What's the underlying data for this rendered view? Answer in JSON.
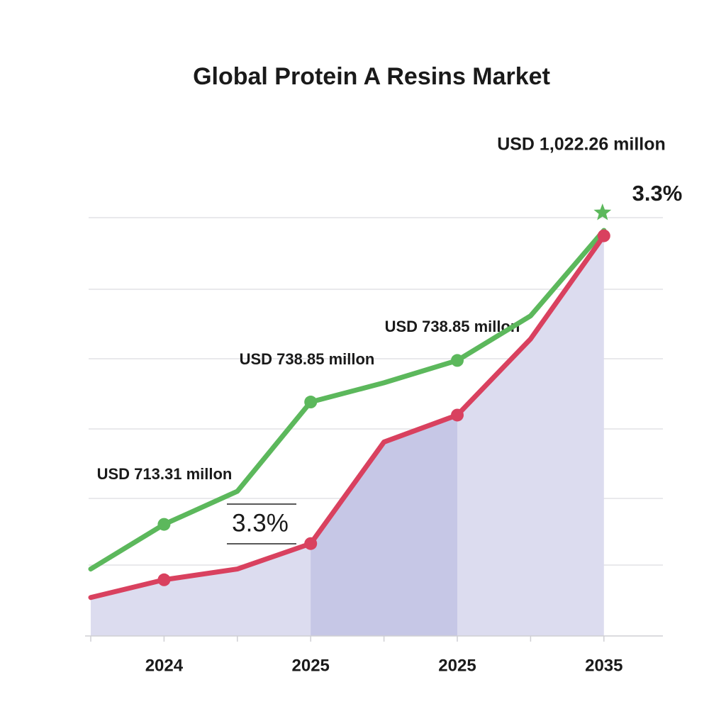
{
  "chart_data": {
    "type": "line",
    "title": "Global Protein A Resins Market",
    "categories": [
      null,
      "2024",
      null,
      "2025",
      null,
      "2025",
      null,
      "2035"
    ],
    "series": [
      {
        "color": "#5cb85c",
        "values": [
          587,
          645,
          688,
          804,
          829,
          858,
          916,
          1027
        ]
      },
      {
        "color": "#d9415f",
        "values": [
          550,
          573,
          587,
          620,
          752,
          787,
          886,
          1020
        ]
      }
    ],
    "ylim": [
      500,
      1050
    ],
    "annotations": [
      "USD 1,022.26 millon",
      "3.3%",
      "USD 738.85 millon",
      "USD 738.85 millon",
      "USD 713.31 millon",
      "3.3%"
    ]
  }
}
